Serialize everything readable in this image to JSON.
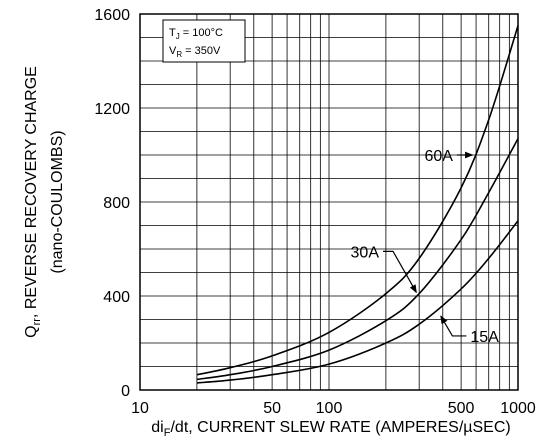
{
  "chart_data": {
    "type": "line",
    "xscale": "log",
    "xlim": [
      10,
      1000
    ],
    "ylim": [
      0,
      1600
    ],
    "xticks": [
      {
        "value": 10,
        "label": "10"
      },
      {
        "value": 50,
        "label": "50"
      },
      {
        "value": 100,
        "label": "100"
      },
      {
        "value": 500,
        "label": "500"
      },
      {
        "value": 1000,
        "label": "1000"
      }
    ],
    "yticks": [
      {
        "value": 0,
        "label": "0"
      },
      {
        "value": 400,
        "label": "400"
      },
      {
        "value": 800,
        "label": "800"
      },
      {
        "value": 1200,
        "label": "1200"
      },
      {
        "value": 1600,
        "label": "1600"
      }
    ],
    "grid": true,
    "xlabel": {
      "pre": "di",
      "sub": "F",
      "post": "/dt, CURRENT SLEW RATE (AMPERES/µSEC)"
    },
    "ylabel": {
      "pre": "Q",
      "sub": "rr",
      "post": ", REVERSE RECOVERY CHARGE"
    },
    "ylabel2": "(nano-COULOMBS)",
    "conditions": [
      {
        "pre": "T",
        "sub": "J",
        "post": " = 100°C"
      },
      {
        "pre": "V",
        "sub": "R",
        "post": " = 350V"
      }
    ],
    "series": [
      {
        "name": "60A",
        "x": [
          20,
          30,
          50,
          100,
          200,
          300,
          500,
          700,
          1000
        ],
        "y": [
          65,
          95,
          145,
          245,
          410,
          560,
          860,
          1150,
          1550
        ]
      },
      {
        "name": "30A",
        "x": [
          20,
          30,
          50,
          100,
          200,
          300,
          500,
          700,
          1000
        ],
        "y": [
          45,
          65,
          100,
          170,
          295,
          410,
          640,
          840,
          1070
        ]
      },
      {
        "name": "15A",
        "x": [
          20,
          30,
          50,
          100,
          200,
          300,
          500,
          700,
          1000
        ],
        "y": [
          30,
          42,
          65,
          110,
          200,
          280,
          430,
          560,
          720
        ]
      }
    ],
    "annotations": [
      {
        "series": "60A",
        "text": "60A",
        "tx": 320,
        "ty": 1000,
        "ax": 575,
        "ay": 1000
      },
      {
        "series": "30A",
        "text": "30A",
        "tx": 130,
        "ty": 590,
        "ax": 290,
        "ay": 415
      },
      {
        "series": "15A",
        "text": "15A",
        "tx": 560,
        "ty": 230,
        "ax": 390,
        "ay": 315
      }
    ]
  }
}
